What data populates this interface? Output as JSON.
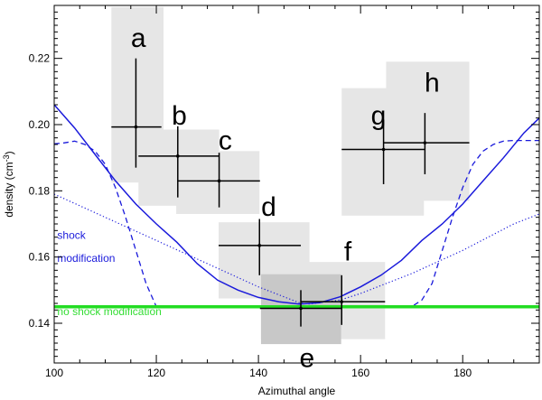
{
  "chart_data": {
    "type": "scatter",
    "xlabel": "Azimuthal angle",
    "ylabel_main": "density (cm",
    "ylabel_sup": "-3",
    "ylabel_close": ")",
    "xlim": [
      100,
      195
    ],
    "ylim": [
      0.128,
      0.236
    ],
    "xticks": [
      100,
      120,
      140,
      160,
      180
    ],
    "yticks": [
      0.14,
      0.16,
      0.18,
      0.2,
      0.22
    ],
    "ytick_labels": [
      "0.14",
      "0.16",
      "0.18",
      "0.20",
      "0.22"
    ],
    "colors": {
      "box": "#e6e6e6",
      "box_dark": "#c8c8c8",
      "solid": "#1a1adb",
      "green": "#22dd22",
      "annot_blue": "#1a1adb",
      "annot_green": "#33dd33"
    },
    "boxes": [
      {
        "id": "a",
        "x0": 111.2,
        "x1": 121.4,
        "y0": 0.1825,
        "y1": 0.2355,
        "dark": false
      },
      {
        "id": "b",
        "x0": 116.5,
        "x1": 132.3,
        "y0": 0.1755,
        "y1": 0.1985,
        "dark": false
      },
      {
        "id": "c",
        "x0": 123.9,
        "x1": 140.2,
        "y0": 0.173,
        "y1": 0.192,
        "dark": false
      },
      {
        "id": "d",
        "x0": 132.2,
        "x1": 150.0,
        "y0": 0.1475,
        "y1": 0.1705,
        "dark": false
      },
      {
        "id": "f",
        "x0": 140.5,
        "x1": 164.8,
        "y0": 0.1352,
        "y1": 0.1585,
        "dark": false
      },
      {
        "id": "e",
        "x0": 140.5,
        "x1": 156.2,
        "y0": 0.1337,
        "y1": 0.1548,
        "dark": true
      },
      {
        "id": "g",
        "x0": 156.3,
        "x1": 172.4,
        "y0": 0.1725,
        "y1": 0.211,
        "dark": false
      },
      {
        "id": "h",
        "x0": 165.0,
        "x1": 181.3,
        "y0": 0.177,
        "y1": 0.219,
        "dark": false
      }
    ],
    "points": [
      {
        "id": "a",
        "label": "a",
        "x": 116.0,
        "y": 0.1993,
        "xerr": [
          111.2,
          121.0
        ],
        "yerr": [
          0.187,
          0.22
        ],
        "label_x": 116.5,
        "label_y": 0.2235
      },
      {
        "id": "b",
        "label": "b",
        "x": 124.2,
        "y": 0.1905,
        "xerr": [
          116.5,
          132.2
        ],
        "yerr": [
          0.178,
          0.1995
        ],
        "label_x": 124.5,
        "label_y": 0.2
      },
      {
        "id": "c",
        "label": "c",
        "x": 132.3,
        "y": 0.183,
        "xerr": [
          124.2,
          140.3
        ],
        "yerr": [
          0.175,
          0.1915
        ],
        "label_x": 133.5,
        "label_y": 0.1925
      },
      {
        "id": "d",
        "label": "d",
        "x": 140.2,
        "y": 0.1635,
        "xerr": [
          132.2,
          148.3
        ],
        "yerr": [
          0.1545,
          0.1715
        ],
        "label_x": 142.0,
        "label_y": 0.1725
      },
      {
        "id": "e",
        "label": "e",
        "x": 148.3,
        "y": 0.1445,
        "xerr": [
          140.3,
          156.2
        ],
        "yerr": [
          0.139,
          0.15
        ],
        "label_x": 149.5,
        "label_y": 0.1268
      },
      {
        "id": "f",
        "label": "f",
        "x": 156.3,
        "y": 0.1465,
        "xerr": [
          148.3,
          164.8
        ],
        "yerr": [
          0.1395,
          0.1545
        ],
        "label_x": 157.5,
        "label_y": 0.159
      },
      {
        "id": "g",
        "label": "g",
        "x": 164.5,
        "y": 0.1925,
        "xerr": [
          156.3,
          172.6
        ],
        "yerr": [
          0.182,
          0.2015
        ],
        "label_x": 163.5,
        "label_y": 0.2
      },
      {
        "id": "h",
        "label": "h",
        "x": 172.6,
        "y": 0.1945,
        "xerr": [
          164.5,
          181.3
        ],
        "yerr": [
          0.185,
          0.2035
        ],
        "label_x": 174.0,
        "label_y": 0.21
      }
    ],
    "lines": [
      {
        "name": "solid",
        "style": "solid",
        "x": [
          100,
          104,
          108,
          112,
          116,
          120,
          124,
          128,
          132,
          136,
          140,
          144,
          148,
          152,
          156,
          160,
          164,
          168,
          172,
          176,
          180,
          184,
          188,
          192,
          195
        ],
        "y": [
          0.206,
          0.199,
          0.191,
          0.183,
          0.176,
          0.17,
          0.1645,
          0.158,
          0.153,
          0.15,
          0.1478,
          0.1465,
          0.1458,
          0.1462,
          0.148,
          0.151,
          0.1545,
          0.159,
          0.165,
          0.17,
          0.176,
          0.183,
          0.19,
          0.1975,
          0.202
        ]
      },
      {
        "name": "dashed",
        "style": "dashed",
        "x": [
          100,
          102,
          104,
          106,
          108,
          110,
          112,
          114,
          116,
          118,
          120,
          124,
          130,
          140,
          150,
          160,
          170,
          172,
          174,
          176,
          178,
          180,
          182,
          184,
          186,
          188,
          190,
          192,
          195
        ],
        "y": [
          0.1942,
          0.1945,
          0.195,
          0.194,
          0.192,
          0.188,
          0.181,
          0.172,
          0.162,
          0.152,
          0.145,
          0.145,
          0.145,
          0.145,
          0.145,
          0.145,
          0.145,
          0.147,
          0.152,
          0.162,
          0.172,
          0.181,
          0.188,
          0.192,
          0.194,
          0.195,
          0.1952,
          0.1952,
          0.1952
        ]
      },
      {
        "name": "dotted",
        "style": "dotted",
        "x": [
          100,
          110,
          120,
          130,
          140,
          148,
          150,
          156,
          160,
          170,
          180,
          190,
          195
        ],
        "y": [
          0.179,
          0.172,
          0.165,
          0.158,
          0.151,
          0.1462,
          0.1458,
          0.147,
          0.149,
          0.155,
          0.162,
          0.17,
          0.173
        ]
      },
      {
        "name": "green",
        "style": "green",
        "x": [
          100,
          195
        ],
        "y": [
          0.145,
          0.145
        ]
      }
    ],
    "annotations": [
      {
        "id": "shock1",
        "text": "shock",
        "x": 100.6,
        "y": 0.1655,
        "color": "annot_blue"
      },
      {
        "id": "shock2",
        "text": "modification",
        "x": 100.6,
        "y": 0.1585,
        "color": "annot_blue"
      },
      {
        "id": "noshock",
        "text": "no shock modification",
        "x": 100.6,
        "y": 0.1425,
        "color": "annot_green"
      }
    ]
  }
}
